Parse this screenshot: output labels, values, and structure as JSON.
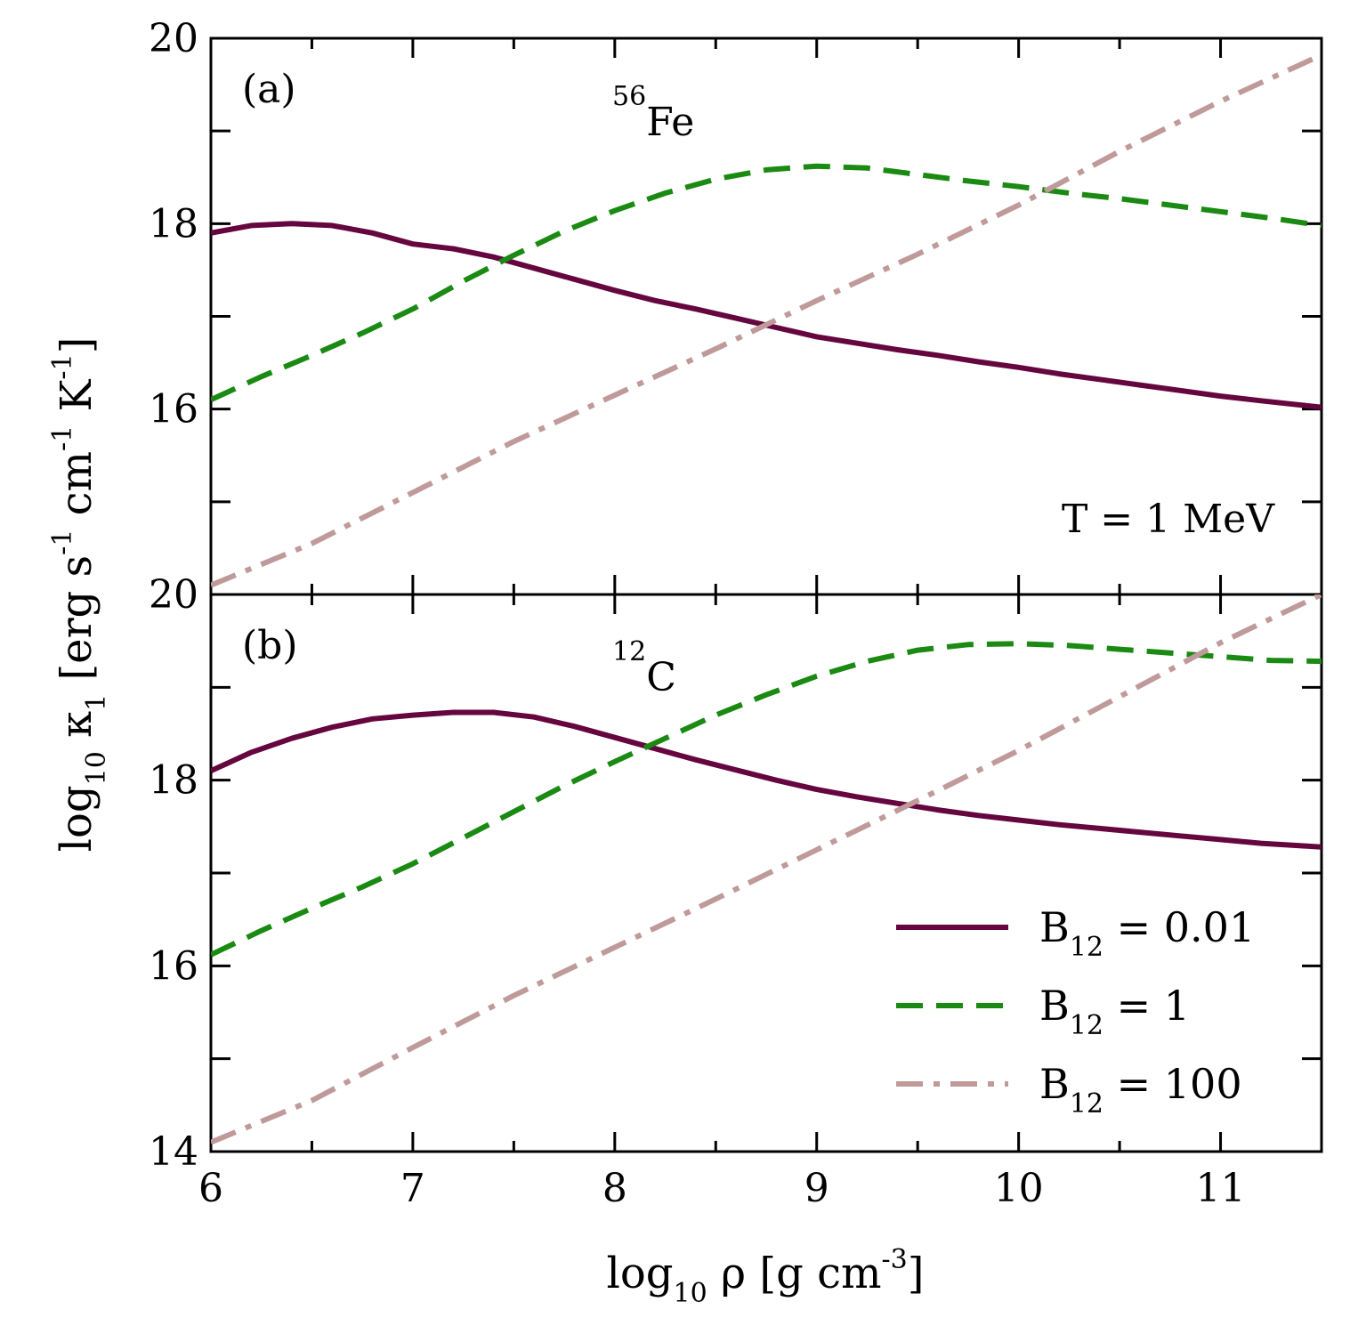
{
  "chart_data": {
    "type": "line",
    "xlabel": {
      "base": "log",
      "sub": "10",
      "text": " ρ [g cm",
      "sup": "-3",
      "end": "]"
    },
    "ylabel": {
      "base": "log",
      "sub": "10",
      "kappa": " κ",
      "kappa_sub": "1",
      "text1": " [erg  s",
      "sup1": "-1",
      "text2": " cm",
      "sup2": "-1",
      "text3": " K",
      "sup3": "-1",
      "end": "]"
    },
    "xlim": [
      6,
      11.5
    ],
    "x_ticks": [
      6,
      7,
      8,
      9,
      10,
      11
    ],
    "x_tick_labels": [
      "6",
      "7",
      "8",
      "9",
      "10",
      "11"
    ],
    "annotation": "T = 1 MeV",
    "legend": [
      {
        "key": "b001",
        "label_base": "B",
        "label_sub": "12",
        "label_value": " = 0.01"
      },
      {
        "key": "b1",
        "label_base": "B",
        "label_sub": "12",
        "label_value": " = 1"
      },
      {
        "key": "b100",
        "label_base": "B",
        "label_sub": "12",
        "label_value": " = 100"
      }
    ],
    "styles": {
      "b001": {
        "color": "#65063F",
        "dash": "none"
      },
      "b1": {
        "color": "#1A8A12",
        "dash": "30,15"
      },
      "b100": {
        "color": "#C09A9A",
        "dash": "30,12,7,12"
      }
    },
    "panels": [
      {
        "tag": "(a)",
        "nucleus_mass": "56",
        "nucleus_symbol": "Fe",
        "ylim": [
          14,
          20
        ],
        "y_ticks": [
          14,
          15,
          16,
          17,
          18,
          19,
          20
        ],
        "y_tick_labels": [
          {
            "value": 16,
            "text": "16"
          },
          {
            "value": 18,
            "text": "18"
          },
          {
            "value": 20,
            "text": "20"
          }
        ],
        "series": [
          {
            "key": "b001",
            "name": "B12 = 0.01",
            "x": [
              6.0,
              6.2,
              6.4,
              6.6,
              6.8,
              7.0,
              7.2,
              7.4,
              7.6,
              7.8,
              8.0,
              8.2,
              8.4,
              8.6,
              8.8,
              9.0,
              9.2,
              9.4,
              9.6,
              9.8,
              10.0,
              10.2,
              10.4,
              10.6,
              10.8,
              11.0,
              11.2,
              11.5
            ],
            "y": [
              17.9,
              17.98,
              18.0,
              17.98,
              17.9,
              17.78,
              17.73,
              17.64,
              17.52,
              17.4,
              17.28,
              17.17,
              17.08,
              16.98,
              16.88,
              16.78,
              16.71,
              16.64,
              16.58,
              16.51,
              16.45,
              16.38,
              16.32,
              16.26,
              16.2,
              16.14,
              16.09,
              16.02
            ]
          },
          {
            "key": "b1",
            "name": "B12 = 1",
            "x": [
              6.0,
              6.25,
              6.5,
              6.75,
              7.0,
              7.25,
              7.5,
              7.75,
              8.0,
              8.25,
              8.5,
              8.75,
              9.0,
              9.25,
              9.5,
              9.75,
              10.0,
              10.25,
              10.5,
              10.75,
              11.0,
              11.25,
              11.5
            ],
            "y": [
              16.1,
              16.35,
              16.58,
              16.82,
              17.08,
              17.38,
              17.66,
              17.92,
              18.14,
              18.33,
              18.48,
              18.58,
              18.62,
              18.6,
              18.53,
              18.46,
              18.4,
              18.33,
              18.27,
              18.2,
              18.13,
              18.06,
              17.98
            ]
          },
          {
            "key": "b100",
            "name": "B12 = 100",
            "x": [
              6.0,
              6.5,
              7.0,
              7.5,
              8.0,
              8.5,
              9.0,
              9.5,
              10.0,
              10.5,
              11.0,
              11.5
            ],
            "y": [
              14.1,
              14.55,
              15.1,
              15.65,
              16.15,
              16.65,
              17.17,
              17.67,
              18.2,
              18.78,
              19.32,
              19.82
            ]
          }
        ]
      },
      {
        "tag": "(b)",
        "nucleus_mass": "12",
        "nucleus_symbol": "C",
        "ylim": [
          14,
          20
        ],
        "y_ticks": [
          14,
          15,
          16,
          17,
          18,
          19,
          20
        ],
        "y_tick_labels": [
          {
            "value": 14,
            "text": "14"
          },
          {
            "value": 16,
            "text": "16"
          },
          {
            "value": 18,
            "text": "18"
          },
          {
            "value": 20,
            "text": "20"
          }
        ],
        "series": [
          {
            "key": "b001",
            "name": "B12 = 0.01",
            "x": [
              6.0,
              6.2,
              6.4,
              6.6,
              6.8,
              7.0,
              7.2,
              7.4,
              7.6,
              7.8,
              8.0,
              8.2,
              8.4,
              8.6,
              8.8,
              9.0,
              9.2,
              9.4,
              9.6,
              9.8,
              10.0,
              10.2,
              10.4,
              10.6,
              10.8,
              11.0,
              11.2,
              11.5
            ],
            "y": [
              18.1,
              18.3,
              18.45,
              18.57,
              18.66,
              18.7,
              18.73,
              18.73,
              18.68,
              18.58,
              18.46,
              18.34,
              18.22,
              18.11,
              18.0,
              17.9,
              17.82,
              17.75,
              17.68,
              17.62,
              17.57,
              17.52,
              17.48,
              17.44,
              17.4,
              17.36,
              17.32,
              17.28
            ]
          },
          {
            "key": "b1",
            "name": "B12 = 1",
            "x": [
              6.0,
              6.25,
              6.5,
              6.75,
              7.0,
              7.25,
              7.5,
              7.75,
              8.0,
              8.25,
              8.5,
              8.75,
              9.0,
              9.25,
              9.5,
              9.75,
              10.0,
              10.25,
              10.5,
              10.75,
              11.0,
              11.25,
              11.5
            ],
            "y": [
              16.12,
              16.38,
              16.62,
              16.85,
              17.1,
              17.38,
              17.66,
              17.94,
              18.2,
              18.45,
              18.7,
              18.92,
              19.12,
              19.28,
              19.4,
              19.46,
              19.47,
              19.45,
              19.41,
              19.37,
              19.33,
              19.29,
              19.28
            ]
          },
          {
            "key": "b100",
            "name": "B12 = 100",
            "x": [
              6.0,
              6.5,
              7.0,
              7.5,
              8.0,
              8.5,
              9.0,
              9.5,
              10.0,
              10.5,
              11.0,
              11.5
            ],
            "y": [
              14.1,
              14.55,
              15.12,
              15.68,
              16.2,
              16.72,
              17.25,
              17.78,
              18.32,
              18.9,
              19.48,
              20.0
            ]
          }
        ]
      }
    ]
  }
}
